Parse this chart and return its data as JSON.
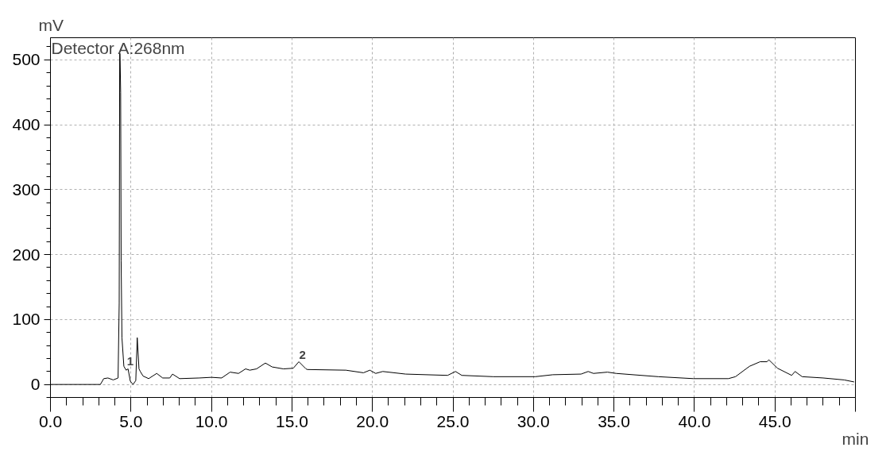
{
  "chart_data": {
    "type": "line",
    "xlabel": "min",
    "ylabel": "mV",
    "annotations": [
      "Detector A:268nm",
      {
        "text": "1",
        "x": 4.9,
        "y": 25
      },
      {
        "text": "2",
        "x": 15.6,
        "y": 35
      }
    ],
    "x": [
      0,
      3.1,
      3.31,
      3.57,
      3.9,
      4.2,
      4.27,
      4.3,
      4.32,
      4.36,
      4.39,
      4.44,
      4.56,
      4.7,
      4.82,
      4.96,
      5.13,
      5.3,
      5.39,
      5.5,
      5.58,
      5.75,
      6.1,
      6.6,
      6.97,
      7.41,
      7.58,
      8.02,
      9.24,
      10.0,
      10.63,
      11.16,
      11.68,
      12.12,
      12.38,
      12.8,
      13.35,
      13.77,
      14.47,
      15.08,
      15.43,
      15.87,
      15.96,
      18.35,
      19.44,
      19.84,
      20.2,
      20.64,
      22.06,
      24.67,
      25.16,
      25.55,
      27.5,
      30.12,
      31.2,
      32.96,
      33.4,
      33.73,
      34.6,
      35.14,
      37.75,
      39.93,
      42.11,
      42.55,
      43.42,
      44.08,
      44.51,
      44.62,
      45.16,
      46.04,
      46.25,
      46.69,
      48.0,
      49.3,
      49.9
    ],
    "series": [
      {
        "color": "#000000",
        "values": [
          0,
          0,
          9,
          10,
          7,
          10,
          125,
          510,
          510,
          450,
          190,
          72,
          28,
          22,
          24,
          5,
          0,
          6,
          72,
          24,
          20,
          13,
          9,
          17,
          10,
          10,
          16,
          9,
          10,
          11,
          10,
          19,
          17,
          24,
          22,
          24,
          33,
          27,
          24,
          25,
          35,
          24,
          23,
          22,
          18,
          22,
          17,
          20,
          16,
          14,
          20,
          14,
          12,
          12,
          15,
          16,
          20,
          17,
          19,
          17,
          12,
          9,
          9,
          12,
          28,
          35,
          35,
          38,
          25,
          14,
          20,
          12,
          10,
          7,
          4
        ]
      }
    ],
    "xlim": [
      0,
      50
    ],
    "ylim": [
      -20,
      534
    ],
    "xticks": [
      {
        "value": 0,
        "label": "0.0"
      },
      {
        "value": 5,
        "label": "5.0"
      },
      {
        "value": 10,
        "label": "10.0"
      },
      {
        "value": 15,
        "label": "15.0"
      },
      {
        "value": 20,
        "label": "20.0"
      },
      {
        "value": 25,
        "label": "25.0"
      },
      {
        "value": 30,
        "label": "30.0"
      },
      {
        "value": 35,
        "label": "35.0"
      },
      {
        "value": 40,
        "label": "40.0"
      },
      {
        "value": 45,
        "label": "45.0"
      },
      {
        "value": 50,
        "label": null
      }
    ],
    "yticks": [
      0,
      100,
      200,
      300,
      400,
      500
    ],
    "grid": true,
    "marker": "none",
    "line_style": "solid"
  }
}
